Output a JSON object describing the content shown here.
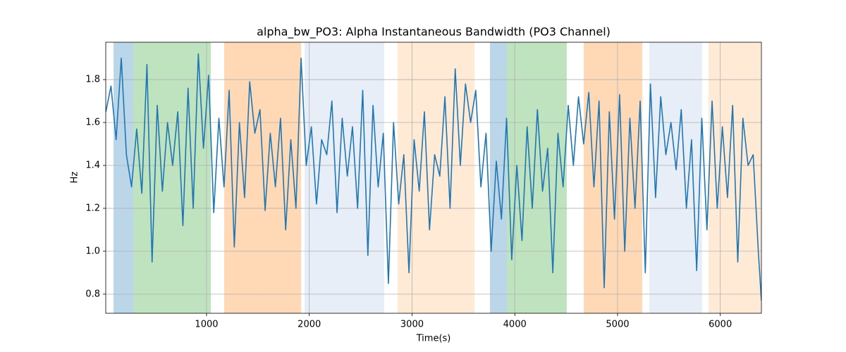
{
  "chart_data": {
    "type": "line",
    "title": "alpha_bw_PO3: Alpha Instantaneous Bandwidth (PO3 Channel)",
    "x_label": "Time(s)",
    "y_label": "Hz",
    "xlim": [
      19,
      6400
    ],
    "ylim": [
      0.711,
      1.974
    ],
    "xticks": [
      1000,
      2000,
      3000,
      4000,
      5000,
      6000
    ],
    "yticks": [
      0.8,
      {
        "value": 1.0,
        "label": "1.0"
      },
      1.2,
      1.4,
      1.6,
      1.8
    ],
    "grid": true,
    "regions": [
      {
        "start": 95,
        "end": 288,
        "color": "#1f77b4"
      },
      {
        "start": 288,
        "end": 1042,
        "color": "#2ca02c"
      },
      {
        "start": 1172,
        "end": 1920,
        "color": "#ff7f0e"
      },
      {
        "start": 1954,
        "end": 2729,
        "color": "#aec7e8"
      },
      {
        "start": 2859,
        "end": 3607,
        "color": "#ffbb78"
      },
      {
        "start": 3758,
        "end": 3923,
        "color": "#1f77b4"
      },
      {
        "start": 3923,
        "end": 4506,
        "color": "#2ca02c"
      },
      {
        "start": 4671,
        "end": 5240,
        "color": "#ff7f0e"
      },
      {
        "start": 5309,
        "end": 5823,
        "color": "#aec7e8"
      },
      {
        "start": 5885,
        "end": 6393,
        "color": "#ffbb78"
      }
    ],
    "x": [
      20,
      70,
      120,
      170,
      220,
      270,
      320,
      370,
      420,
      470,
      520,
      570,
      620,
      670,
      720,
      770,
      820,
      870,
      920,
      970,
      1020,
      1070,
      1120,
      1170,
      1220,
      1270,
      1320,
      1370,
      1420,
      1470,
      1520,
      1570,
      1620,
      1670,
      1720,
      1770,
      1820,
      1870,
      1920,
      1970,
      2020,
      2070,
      2120,
      2170,
      2220,
      2270,
      2320,
      2370,
      2420,
      2470,
      2520,
      2570,
      2620,
      2670,
      2720,
      2770,
      2820,
      2870,
      2920,
      2970,
      3020,
      3070,
      3120,
      3170,
      3220,
      3270,
      3320,
      3370,
      3420,
      3470,
      3520,
      3570,
      3620,
      3670,
      3720,
      3770,
      3820,
      3870,
      3920,
      3970,
      4020,
      4070,
      4120,
      4170,
      4220,
      4270,
      4320,
      4370,
      4420,
      4470,
      4520,
      4570,
      4620,
      4670,
      4720,
      4770,
      4820,
      4870,
      4920,
      4970,
      5020,
      5070,
      5120,
      5170,
      5220,
      5270,
      5320,
      5370,
      5420,
      5470,
      5520,
      5570,
      5620,
      5670,
      5720,
      5770,
      5820,
      5870,
      5920,
      5970,
      6020,
      6070,
      6120,
      6170,
      6220,
      6270,
      6320,
      6370,
      6400
    ],
    "series": [
      {
        "name": "alpha_bw_PO3",
        "color": "#1f77b4",
        "values": [
          1.65,
          1.77,
          1.52,
          1.9,
          1.45,
          1.3,
          1.57,
          1.27,
          1.87,
          0.95,
          1.68,
          1.28,
          1.6,
          1.4,
          1.65,
          1.12,
          1.76,
          1.2,
          1.92,
          1.48,
          1.82,
          1.18,
          1.62,
          1.3,
          1.75,
          1.02,
          1.6,
          1.25,
          1.79,
          1.55,
          1.66,
          1.19,
          1.55,
          1.3,
          1.62,
          1.1,
          1.52,
          1.2,
          1.9,
          1.4,
          1.58,
          1.22,
          1.52,
          1.45,
          1.7,
          1.18,
          1.62,
          1.35,
          1.58,
          1.2,
          1.75,
          0.98,
          1.68,
          1.3,
          1.55,
          0.85,
          1.6,
          1.22,
          1.45,
          0.9,
          1.52,
          1.28,
          1.65,
          1.1,
          1.45,
          1.35,
          1.72,
          1.2,
          1.85,
          1.4,
          1.78,
          1.6,
          1.75,
          1.3,
          1.55,
          1.0,
          1.42,
          1.15,
          1.62,
          0.96,
          1.4,
          1.05,
          1.58,
          1.2,
          1.66,
          1.28,
          1.48,
          0.9,
          1.55,
          1.3,
          1.68,
          1.4,
          1.72,
          1.5,
          1.74,
          1.3,
          1.7,
          0.83,
          1.65,
          1.15,
          1.73,
          1.0,
          1.62,
          1.2,
          1.7,
          0.9,
          1.78,
          1.25,
          1.72,
          1.45,
          1.6,
          1.38,
          1.66,
          1.2,
          1.52,
          0.91,
          1.62,
          1.1,
          1.7,
          1.2,
          1.58,
          1.25,
          1.68,
          0.95,
          1.62,
          1.4,
          1.45,
          1.0,
          0.77
        ]
      }
    ]
  }
}
